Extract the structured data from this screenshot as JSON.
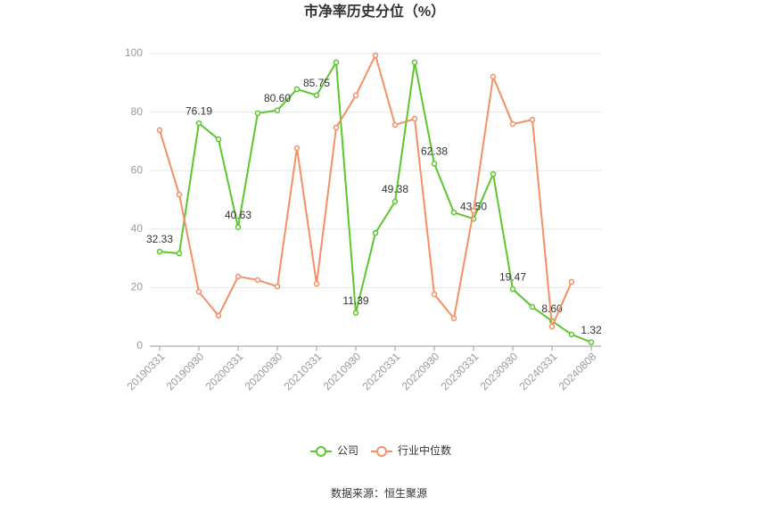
{
  "chart_data": {
    "type": "line",
    "title": "市净率历史分位（%）",
    "categories": [
      "20190331",
      null,
      "20190930",
      null,
      "20200331",
      null,
      "20200930",
      null,
      "20210331",
      null,
      "20210930",
      null,
      "20220331",
      null,
      "20220930",
      null,
      "20230331",
      null,
      "20230930",
      null,
      "20240331",
      null,
      "20240808"
    ],
    "series": [
      {
        "name": "公司",
        "color": "#5cc62f",
        "values": [
          32.33,
          31.7,
          76.19,
          70.7,
          40.63,
          79.6,
          80.6,
          87.8,
          85.75,
          97.0,
          11.39,
          38.7,
          49.38,
          97.0,
          62.38,
          45.7,
          43.5,
          58.8,
          19.47,
          13.4,
          8.6,
          4.0,
          1.32
        ],
        "value_labels": [
          "32.33",
          null,
          "76.19",
          null,
          "40.63",
          null,
          "80.60",
          null,
          "85.75",
          null,
          "11.39",
          null,
          "49.38",
          null,
          "62.38",
          null,
          "43.50",
          null,
          "19.47",
          null,
          "8.60",
          null,
          "1.32"
        ]
      },
      {
        "name": "行业中位数",
        "color": "#f39065",
        "values": [
          73.8,
          51.8,
          18.6,
          10.4,
          23.8,
          22.6,
          20.4,
          67.7,
          21.3,
          74.7,
          85.7,
          99.4,
          75.6,
          77.7,
          17.7,
          9.5,
          46.3,
          92.1,
          75.9,
          77.4,
          6.7,
          22.0,
          null
        ]
      }
    ],
    "ylim": [
      0,
      100
    ],
    "yticks": [
      0,
      20,
      40,
      60,
      80,
      100
    ],
    "grid": true,
    "source": "数据来源：恒生聚源"
  }
}
